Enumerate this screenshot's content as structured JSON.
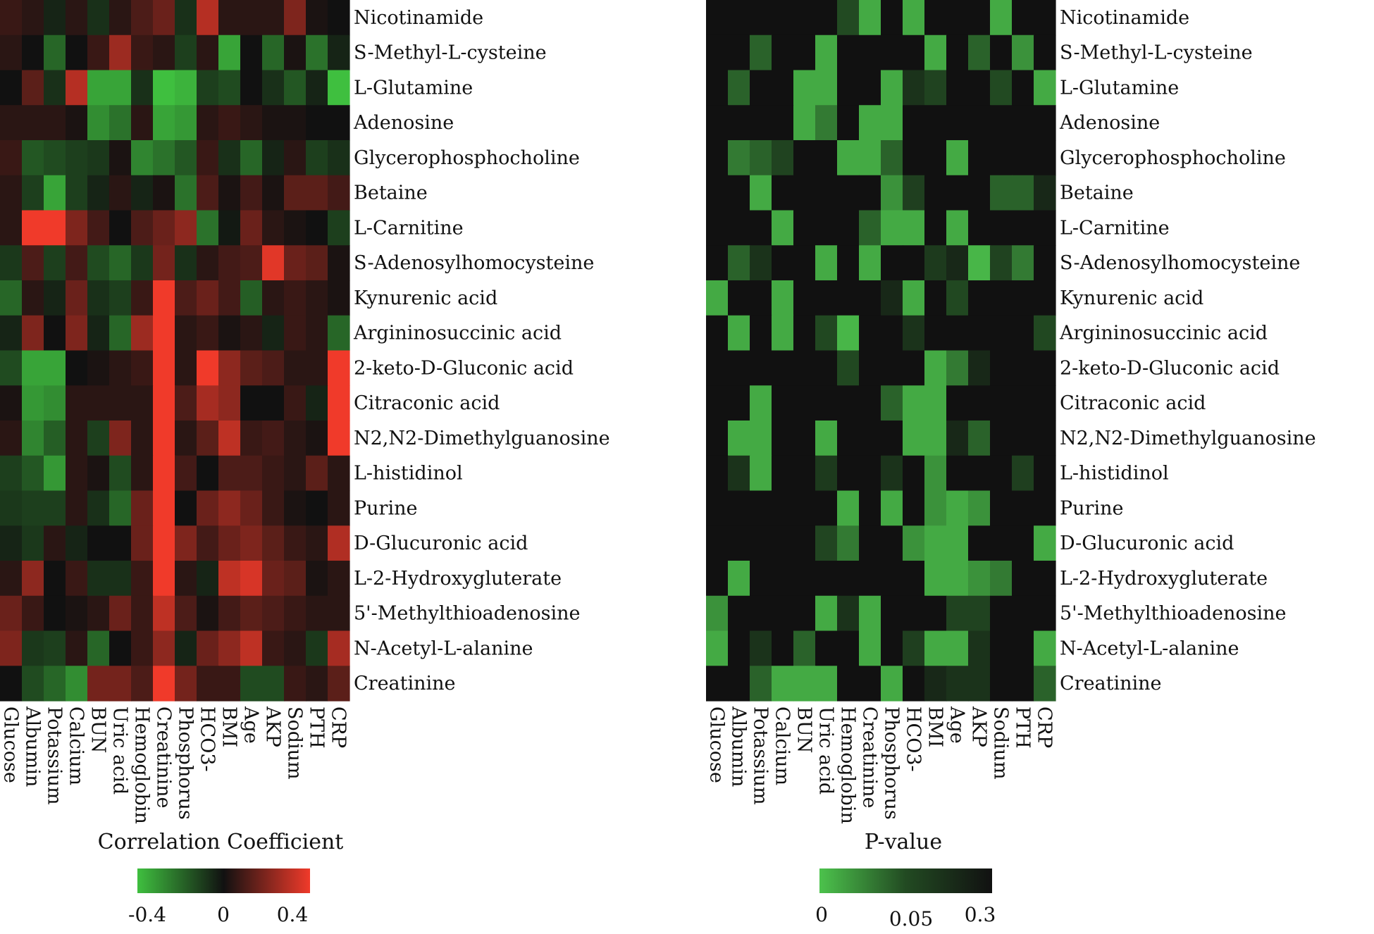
{
  "chart_data": [
    {
      "type": "heatmap",
      "id": "correlation",
      "legend": {
        "title": "Correlation Coefficient",
        "ticks": [
          "-0.4",
          "0",
          "0.4"
        ],
        "colors": {
          "negative": "#3fbf3f",
          "zero": "#111111",
          "positive": "#f03a2a"
        }
      },
      "rows": [
        "Nicotinamide",
        "S-Methyl-L-cysteine",
        "L-Glutamine",
        "Adenosine",
        "Glycerophosphocholine",
        "Betaine",
        "L-Carnitine",
        "S-Adenosylhomocysteine",
        "Kynurenic acid",
        "Argininosuccinic acid",
        "2-keto-D-Gluconic acid",
        "Citraconic acid",
        "N2,N2-Dimethylguanosine",
        "L-histidinol",
        "Purine",
        "D-Glucuronic acid",
        "L-2-Hydroxygluterate",
        "5'-Methylthioadenosine",
        "N-Acetyl-L-alanine",
        "Creatinine"
      ],
      "columns": [
        "Glucose",
        "Albumin",
        "Potassium",
        "Calcium",
        "BUN",
        "Uric acid",
        "Hemoglobin",
        "Creatinine",
        "Phosphorus",
        "HCO3-",
        "BMI",
        "Age",
        "AKP",
        "Sodium",
        "PTH",
        "CRP"
      ],
      "values": [
        [
          0.08,
          0.05,
          -0.05,
          0.05,
          -0.08,
          0.05,
          0.12,
          0.18,
          -0.08,
          0.33,
          0.05,
          0.05,
          0.05,
          0.22,
          0.02,
          0.0
        ],
        [
          0.05,
          0.0,
          -0.22,
          0.0,
          0.08,
          0.28,
          0.08,
          0.05,
          -0.12,
          0.05,
          -0.38,
          0.0,
          -0.22,
          0.02,
          -0.25,
          -0.05
        ],
        [
          0.0,
          0.15,
          -0.08,
          0.33,
          -0.38,
          -0.38,
          -0.08,
          -0.45,
          -0.42,
          -0.12,
          -0.15,
          0.0,
          -0.08,
          -0.18,
          -0.05,
          -0.48
        ],
        [
          0.05,
          0.05,
          0.05,
          0.02,
          -0.32,
          -0.25,
          0.05,
          -0.38,
          -0.35,
          0.05,
          0.08,
          0.05,
          0.02,
          0.02,
          0.0,
          0.0
        ],
        [
          0.08,
          -0.18,
          -0.15,
          -0.12,
          -0.1,
          0.02,
          -0.3,
          -0.25,
          -0.18,
          0.08,
          -0.08,
          -0.22,
          -0.05,
          0.05,
          -0.12,
          -0.08
        ],
        [
          0.05,
          -0.12,
          -0.38,
          -0.12,
          -0.05,
          0.05,
          -0.05,
          0.02,
          -0.25,
          0.12,
          0.02,
          0.1,
          0.02,
          0.15,
          0.15,
          0.1
        ],
        [
          0.05,
          0.48,
          0.48,
          0.22,
          0.1,
          0.0,
          0.12,
          0.18,
          0.25,
          -0.25,
          -0.02,
          0.18,
          0.05,
          0.02,
          0.0,
          -0.12
        ],
        [
          -0.1,
          0.12,
          -0.12,
          0.1,
          -0.15,
          -0.22,
          -0.1,
          0.2,
          -0.08,
          0.05,
          0.1,
          0.12,
          0.42,
          0.18,
          0.15,
          0.02
        ],
        [
          -0.22,
          0.05,
          -0.05,
          0.18,
          -0.08,
          -0.12,
          0.08,
          0.48,
          0.12,
          0.18,
          0.1,
          -0.2,
          0.05,
          0.08,
          0.05,
          0.02
        ],
        [
          -0.05,
          0.22,
          0.0,
          0.22,
          -0.05,
          -0.22,
          0.28,
          0.48,
          0.05,
          0.08,
          0.02,
          0.05,
          -0.05,
          0.08,
          0.05,
          -0.22
        ],
        [
          -0.15,
          -0.38,
          -0.38,
          0.0,
          0.02,
          0.05,
          0.08,
          0.48,
          0.05,
          0.45,
          0.25,
          0.15,
          0.12,
          0.05,
          0.05,
          0.48
        ],
        [
          0.02,
          -0.35,
          -0.32,
          0.05,
          0.05,
          0.05,
          0.05,
          0.48,
          0.12,
          0.3,
          0.25,
          0.0,
          0.0,
          0.08,
          -0.05,
          0.48
        ],
        [
          0.05,
          -0.3,
          -0.2,
          0.05,
          -0.12,
          0.22,
          0.05,
          0.48,
          0.05,
          0.15,
          0.35,
          0.08,
          0.1,
          0.05,
          0.02,
          0.48
        ],
        [
          -0.12,
          -0.18,
          -0.35,
          0.05,
          0.02,
          -0.15,
          0.05,
          0.48,
          0.1,
          0.0,
          0.12,
          0.12,
          0.08,
          0.05,
          0.15,
          0.05
        ],
        [
          -0.1,
          -0.12,
          -0.12,
          0.05,
          -0.08,
          -0.22,
          0.18,
          0.48,
          0.0,
          0.18,
          0.25,
          0.18,
          0.08,
          0.02,
          0.0,
          0.05
        ],
        [
          -0.05,
          -0.1,
          0.05,
          -0.05,
          0.0,
          0.0,
          0.18,
          0.48,
          0.22,
          0.1,
          0.18,
          0.22,
          0.15,
          0.08,
          0.05,
          0.32
        ],
        [
          0.05,
          0.25,
          0.0,
          0.08,
          -0.08,
          -0.08,
          0.08,
          0.45,
          0.05,
          -0.05,
          0.35,
          0.4,
          0.18,
          0.15,
          0.02,
          0.05
        ],
        [
          0.18,
          0.08,
          0.0,
          0.02,
          0.05,
          0.18,
          0.08,
          0.35,
          0.12,
          0.02,
          0.1,
          0.15,
          0.12,
          0.08,
          0.05,
          0.05
        ],
        [
          0.22,
          -0.1,
          -0.12,
          0.05,
          -0.22,
          0.0,
          0.08,
          0.25,
          -0.05,
          0.18,
          0.25,
          0.35,
          0.08,
          0.05,
          -0.1,
          0.3
        ],
        [
          0.0,
          -0.15,
          -0.22,
          -0.32,
          0.2,
          0.2,
          0.12,
          0.48,
          0.2,
          0.08,
          0.08,
          -0.15,
          -0.15,
          0.08,
          0.05,
          0.15
        ]
      ]
    },
    {
      "type": "heatmap",
      "id": "pvalue",
      "legend": {
        "title": "P-value",
        "ticks": [
          "0",
          "0.05",
          "0.3"
        ],
        "colors": {
          "low": "#4cc24c",
          "mid": "#224a22",
          "high": "#111111"
        }
      },
      "rows": [
        "Nicotinamide",
        "S-Methyl-L-cysteine",
        "L-Glutamine",
        "Adenosine",
        "Glycerophosphocholine",
        "Betaine",
        "L-Carnitine",
        "S-Adenosylhomocysteine",
        "Kynurenic acid",
        "Argininosuccinic acid",
        "2-keto-D-Gluconic acid",
        "Citraconic acid",
        "N2,N2-Dimethylguanosine",
        "L-histidinol",
        "Purine",
        "D-Glucuronic acid",
        "L-2-Hydroxygluterate",
        "5'-Methylthioadenosine",
        "N-Acetyl-L-alanine",
        "Creatinine"
      ],
      "columns": [
        "Glucose",
        "Albumin",
        "Potassium",
        "Calcium",
        "BUN",
        "Uric acid",
        "Hemoglobin",
        "Creatinine",
        "Phosphorus",
        "HCO3-",
        "BMI",
        "Age",
        "AKP",
        "Sodium",
        "PTH",
        "CRP"
      ],
      "values": [
        [
          0.3,
          0.3,
          0.3,
          0.3,
          0.3,
          0.3,
          0.05,
          0.01,
          0.3,
          0.01,
          0.3,
          0.3,
          0.3,
          0.01,
          0.3,
          0.3
        ],
        [
          0.3,
          0.3,
          0.04,
          0.3,
          0.3,
          0.01,
          0.3,
          0.3,
          0.3,
          0.3,
          0.01,
          0.3,
          0.04,
          0.3,
          0.02,
          0.3
        ],
        [
          0.3,
          0.04,
          0.3,
          0.3,
          0.01,
          0.01,
          0.3,
          0.3,
          0.01,
          0.15,
          0.08,
          0.3,
          0.3,
          0.05,
          0.3,
          0.01
        ],
        [
          0.3,
          0.3,
          0.3,
          0.3,
          0.01,
          0.03,
          0.3,
          0.01,
          0.01,
          0.3,
          0.3,
          0.3,
          0.3,
          0.3,
          0.3,
          0.3
        ],
        [
          0.3,
          0.03,
          0.04,
          0.08,
          0.3,
          0.3,
          0.01,
          0.01,
          0.04,
          0.3,
          0.3,
          0.01,
          0.3,
          0.3,
          0.3,
          0.3
        ],
        [
          0.3,
          0.3,
          0.01,
          0.3,
          0.3,
          0.3,
          0.3,
          0.3,
          0.02,
          0.1,
          0.3,
          0.3,
          0.3,
          0.04,
          0.04,
          0.2
        ],
        [
          0.3,
          0.3,
          0.3,
          0.01,
          0.3,
          0.3,
          0.3,
          0.04,
          0.01,
          0.01,
          0.3,
          0.01,
          0.3,
          0.3,
          0.3,
          0.3
        ],
        [
          0.3,
          0.04,
          0.15,
          0.3,
          0.3,
          0.01,
          0.3,
          0.01,
          0.3,
          0.3,
          0.12,
          0.2,
          0.005,
          0.08,
          0.03,
          0.3
        ],
        [
          0.01,
          0.3,
          0.3,
          0.01,
          0.3,
          0.3,
          0.3,
          0.3,
          0.2,
          0.01,
          0.3,
          0.06,
          0.3,
          0.3,
          0.3,
          0.3
        ],
        [
          0.3,
          0.01,
          0.3,
          0.01,
          0.3,
          0.06,
          0.005,
          0.3,
          0.3,
          0.15,
          0.3,
          0.3,
          0.3,
          0.3,
          0.3,
          0.06
        ],
        [
          0.3,
          0.3,
          0.3,
          0.3,
          0.3,
          0.3,
          0.06,
          0.3,
          0.3,
          0.3,
          0.01,
          0.03,
          0.2,
          0.3,
          0.3,
          0.3
        ],
        [
          0.3,
          0.3,
          0.01,
          0.3,
          0.3,
          0.3,
          0.3,
          0.3,
          0.04,
          0.01,
          0.01,
          0.3,
          0.3,
          0.3,
          0.3,
          0.3
        ],
        [
          0.3,
          0.01,
          0.01,
          0.3,
          0.3,
          0.01,
          0.3,
          0.3,
          0.3,
          0.01,
          0.01,
          0.2,
          0.04,
          0.3,
          0.3,
          0.3
        ],
        [
          0.3,
          0.15,
          0.01,
          0.3,
          0.3,
          0.12,
          0.3,
          0.3,
          0.15,
          0.3,
          0.02,
          0.3,
          0.3,
          0.3,
          0.1,
          0.3
        ],
        [
          0.3,
          0.3,
          0.3,
          0.3,
          0.3,
          0.3,
          0.01,
          0.3,
          0.01,
          0.3,
          0.02,
          0.01,
          0.02,
          0.3,
          0.3,
          0.3
        ],
        [
          0.3,
          0.3,
          0.3,
          0.3,
          0.3,
          0.07,
          0.03,
          0.3,
          0.3,
          0.02,
          0.01,
          0.01,
          0.3,
          0.3,
          0.3,
          0.01
        ],
        [
          0.3,
          0.01,
          0.3,
          0.3,
          0.3,
          0.3,
          0.3,
          0.3,
          0.3,
          0.3,
          0.01,
          0.01,
          0.02,
          0.03,
          0.3,
          0.3
        ],
        [
          0.02,
          0.3,
          0.3,
          0.3,
          0.3,
          0.01,
          0.15,
          0.01,
          0.3,
          0.3,
          0.3,
          0.08,
          0.08,
          0.3,
          0.3,
          0.3
        ],
        [
          0.01,
          0.3,
          0.15,
          0.3,
          0.04,
          0.3,
          0.3,
          0.01,
          0.3,
          0.1,
          0.01,
          0.01,
          0.15,
          0.3,
          0.3,
          0.01
        ],
        [
          0.3,
          0.3,
          0.04,
          0.01,
          0.01,
          0.01,
          0.3,
          0.3,
          0.01,
          0.3,
          0.2,
          0.15,
          0.15,
          0.3,
          0.3,
          0.04
        ]
      ]
    }
  ]
}
